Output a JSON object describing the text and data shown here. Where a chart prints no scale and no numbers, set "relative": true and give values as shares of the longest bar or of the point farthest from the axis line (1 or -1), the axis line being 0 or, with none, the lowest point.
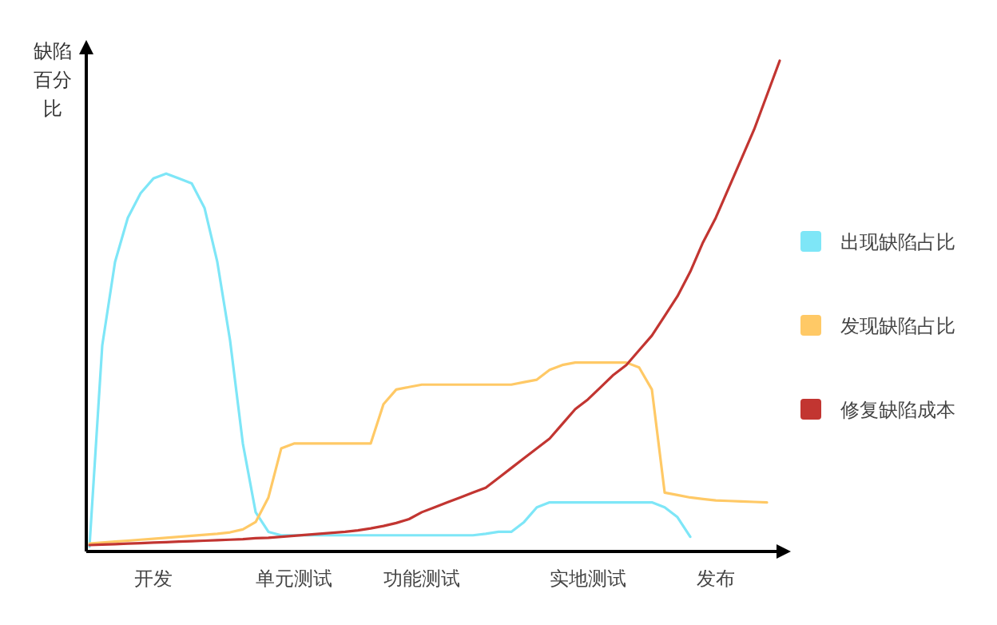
{
  "chart_data": {
    "type": "line",
    "relative": true,
    "ylabel": "缺陷百分比",
    "legend": "right",
    "marker": "none",
    "line_style": "solid",
    "grid": false,
    "categories": [
      null,
      null,
      null,
      null,
      null,
      "开发",
      null,
      null,
      null,
      null,
      null,
      null,
      null,
      null,
      null,
      null,
      "单元测试",
      null,
      null,
      null,
      null,
      null,
      null,
      null,
      null,
      null,
      "功能测试",
      null,
      null,
      null,
      null,
      null,
      null,
      null,
      null,
      null,
      null,
      null,
      null,
      "实地测试",
      null,
      null,
      null,
      null,
      null,
      null,
      null,
      null,
      null,
      "发布",
      null,
      null,
      null,
      null,
      null
    ],
    "series": [
      {
        "name": "出现缺陷占比",
        "color": "#7ee6f7",
        "values": [
          0.01,
          0.42,
          0.59,
          0.68,
          0.73,
          0.76,
          0.77,
          0.76,
          0.75,
          0.7,
          0.59,
          0.43,
          0.22,
          0.08,
          0.04,
          0.033,
          0.033,
          0.033,
          0.033,
          0.033,
          0.033,
          0.033,
          0.033,
          0.033,
          0.033,
          0.033,
          0.033,
          0.033,
          0.033,
          0.033,
          0.033,
          0.036,
          0.04,
          0.04,
          0.06,
          0.09,
          0.1,
          0.1,
          0.1,
          0.1,
          0.1,
          0.1,
          0.1,
          0.1,
          0.1,
          0.09,
          0.07,
          0.03,
          null,
          null,
          null,
          null,
          null,
          null,
          null
        ]
      },
      {
        "name": "发现缺陷占比",
        "color": "#ffc966",
        "values": [
          0.016,
          0.018,
          0.02,
          0.022,
          0.024,
          0.026,
          0.028,
          0.03,
          0.032,
          0.034,
          0.036,
          0.039,
          0.045,
          0.06,
          0.11,
          0.21,
          0.22,
          0.22,
          0.22,
          0.22,
          0.22,
          0.22,
          0.22,
          0.3,
          0.33,
          0.335,
          0.34,
          0.34,
          0.34,
          0.34,
          0.34,
          0.34,
          0.34,
          0.34,
          0.345,
          0.35,
          0.37,
          0.38,
          0.385,
          0.385,
          0.385,
          0.385,
          0.385,
          0.375,
          0.33,
          0.12,
          0.115,
          0.11,
          0.107,
          0.104,
          0.103,
          0.102,
          0.101,
          0.1,
          null
        ]
      },
      {
        "name": "修复缺陷成本",
        "color": "#c23531",
        "values": [
          0.013,
          0.014,
          0.015,
          0.016,
          0.017,
          0.018,
          0.019,
          0.02,
          0.021,
          0.022,
          0.023,
          0.024,
          0.025,
          0.027,
          0.028,
          0.03,
          0.032,
          0.034,
          0.036,
          0.038,
          0.04,
          0.043,
          0.047,
          0.052,
          0.058,
          0.066,
          0.08,
          0.09,
          0.1,
          0.11,
          0.12,
          0.13,
          0.15,
          0.17,
          0.19,
          0.21,
          0.23,
          0.26,
          0.29,
          0.31,
          0.335,
          0.36,
          0.38,
          0.41,
          0.44,
          0.48,
          0.52,
          0.57,
          0.63,
          0.68,
          0.74,
          0.8,
          0.86,
          0.93,
          1
        ]
      }
    ]
  }
}
